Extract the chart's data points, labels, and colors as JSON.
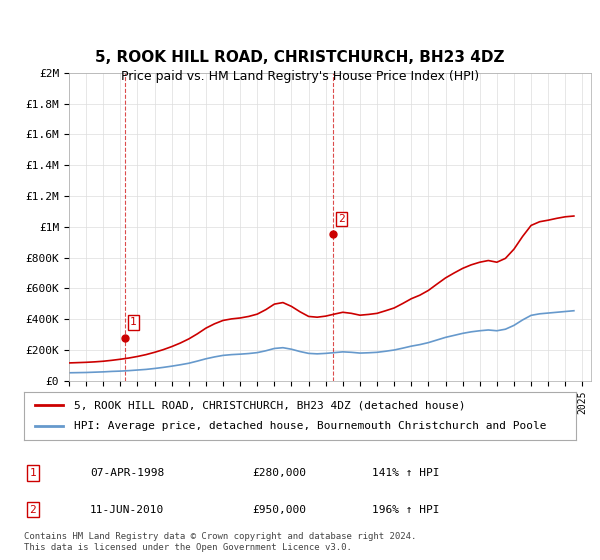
{
  "title": "5, ROOK HILL ROAD, CHRISTCHURCH, BH23 4DZ",
  "subtitle": "Price paid vs. HM Land Registry's House Price Index (HPI)",
  "legend_line1": "5, ROOK HILL ROAD, CHRISTCHURCH, BH23 4DZ (detached house)",
  "legend_line2": "HPI: Average price, detached house, Bournemouth Christchurch and Poole",
  "footnote": "Contains HM Land Registry data © Crown copyright and database right 2024.\nThis data is licensed under the Open Government Licence v3.0.",
  "sale1_date": "07-APR-1998",
  "sale1_price": 280000,
  "sale1_label": "141% ↑ HPI",
  "sale2_date": "11-JUN-2010",
  "sale2_price": 950000,
  "sale2_label": "196% ↑ HPI",
  "sale1_x": 1998.27,
  "sale2_x": 2010.44,
  "hpi_color": "#6699cc",
  "price_color": "#cc0000",
  "background_color": "#ffffff",
  "grid_color": "#dddddd",
  "ylim": [
    0,
    2000000
  ],
  "xlim_left": 1995,
  "xlim_right": 2025.5,
  "yticks": [
    0,
    200000,
    400000,
    600000,
    800000,
    1000000,
    1200000,
    1400000,
    1600000,
    1800000,
    2000000
  ],
  "ytick_labels": [
    "£0",
    "£200K",
    "£400K",
    "£600K",
    "£800K",
    "£1M",
    "£1.2M",
    "£1.4M",
    "£1.6M",
    "£1.8M",
    "£2M"
  ],
  "xticks": [
    1995,
    1996,
    1997,
    1998,
    1999,
    2000,
    2001,
    2002,
    2003,
    2004,
    2005,
    2006,
    2007,
    2008,
    2009,
    2010,
    2011,
    2012,
    2013,
    2014,
    2015,
    2016,
    2017,
    2018,
    2019,
    2020,
    2021,
    2022,
    2023,
    2024,
    2025
  ],
  "hpi_x": [
    1995,
    1995.5,
    1996,
    1996.5,
    1997,
    1997.5,
    1998,
    1998.5,
    1999,
    1999.5,
    2000,
    2000.5,
    2001,
    2001.5,
    2002,
    2002.5,
    2003,
    2003.5,
    2004,
    2004.5,
    2005,
    2005.5,
    2006,
    2006.5,
    2007,
    2007.5,
    2008,
    2008.5,
    2009,
    2009.5,
    2010,
    2010.5,
    2011,
    2011.5,
    2012,
    2012.5,
    2013,
    2013.5,
    2014,
    2014.5,
    2015,
    2015.5,
    2016,
    2016.5,
    2017,
    2017.5,
    2018,
    2018.5,
    2019,
    2019.5,
    2020,
    2020.5,
    2021,
    2021.5,
    2022,
    2022.5,
    2023,
    2023.5,
    2024,
    2024.5
  ],
  "hpi_y": [
    52000,
    53000,
    54000,
    56000,
    58000,
    61000,
    63000,
    66000,
    70000,
    74000,
    80000,
    87000,
    95000,
    104000,
    114000,
    128000,
    143000,
    155000,
    165000,
    170000,
    173000,
    177000,
    183000,
    195000,
    210000,
    215000,
    205000,
    190000,
    178000,
    175000,
    178000,
    183000,
    188000,
    185000,
    180000,
    182000,
    185000,
    192000,
    200000,
    212000,
    225000,
    235000,
    248000,
    265000,
    282000,
    295000,
    308000,
    318000,
    325000,
    330000,
    325000,
    335000,
    360000,
    395000,
    425000,
    435000,
    440000,
    445000,
    450000,
    455000
  ],
  "price_x": [
    1995,
    1995.5,
    1996,
    1996.5,
    1997,
    1997.5,
    1998,
    1998.5,
    1999,
    1999.5,
    2000,
    2000.5,
    2001,
    2001.5,
    2002,
    2002.5,
    2003,
    2003.5,
    2004,
    2004.5,
    2005,
    2005.5,
    2006,
    2006.5,
    2007,
    2007.5,
    2008,
    2008.5,
    2009,
    2009.5,
    2010,
    2010.5,
    2011,
    2011.5,
    2012,
    2012.5,
    2013,
    2013.5,
    2014,
    2014.5,
    2015,
    2015.5,
    2016,
    2016.5,
    2017,
    2017.5,
    2018,
    2018.5,
    2019,
    2019.5,
    2020,
    2020.5,
    2021,
    2021.5,
    2022,
    2022.5,
    2023,
    2023.5,
    2024,
    2024.5
  ],
  "price_y": [
    116000,
    118000,
    120000,
    123000,
    127000,
    133000,
    140000,
    148000,
    158000,
    170000,
    185000,
    202000,
    222000,
    245000,
    272000,
    305000,
    342000,
    370000,
    392000,
    402000,
    408000,
    418000,
    433000,
    462000,
    498000,
    508000,
    483000,
    448000,
    418000,
    413000,
    420000,
    433000,
    445000,
    438000,
    426000,
    431000,
    438000,
    455000,
    473000,
    502000,
    533000,
    556000,
    587000,
    628000,
    668000,
    700000,
    730000,
    753000,
    770000,
    781000,
    770000,
    795000,
    855000,
    937000,
    1009000,
    1033000,
    1043000,
    1055000,
    1065000,
    1070000
  ]
}
